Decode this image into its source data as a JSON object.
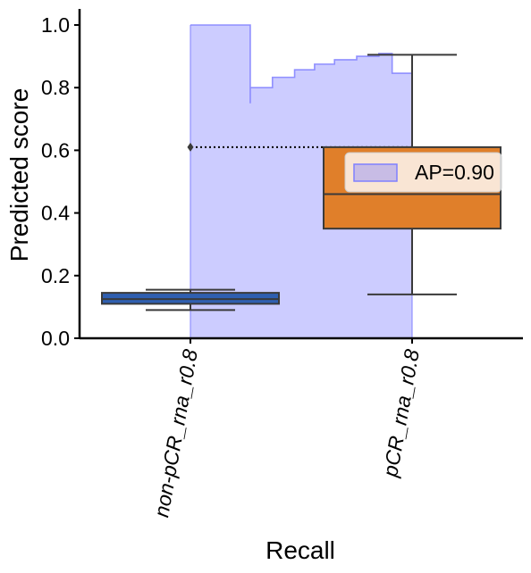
{
  "chart_data": {
    "type": "box",
    "xlabel": "Recall",
    "ylabel": "Predicted score",
    "ylim": [
      0,
      1.05
    ],
    "yticks": [
      "0.0",
      "0.2",
      "0.4",
      "0.6",
      "0.8",
      "1.0"
    ],
    "categories": [
      "non-pCR_rna_r0.8",
      "pCR_rna_r0.8"
    ],
    "boxes": [
      {
        "category": "non-pCR_rna_r0.8",
        "whisker_low": 0.09,
        "q1": 0.11,
        "median": 0.125,
        "q3": 0.145,
        "whisker_high": 0.155,
        "outliers": [
          0.61
        ],
        "color": "#2f5fb0"
      },
      {
        "category": "pCR_rna_r0.8",
        "whisker_low": 0.14,
        "q1": 0.35,
        "median": 0.46,
        "q3": 0.61,
        "whisker_high": 0.905,
        "outliers": [],
        "color": "#e07f2a"
      }
    ],
    "pr_curve": {
      "label": "AP=0.90",
      "color": "#8080ff",
      "recall": [
        0.0,
        0.27,
        0.27,
        0.37,
        0.37,
        0.47,
        0.47,
        0.56,
        0.56,
        0.65,
        0.65,
        0.75,
        0.75,
        0.85,
        0.85,
        0.91,
        0.91,
        1.0
      ],
      "precision": [
        1.0,
        1.0,
        0.8,
        0.8,
        0.833,
        0.833,
        0.857,
        0.857,
        0.875,
        0.875,
        0.889,
        0.889,
        0.9,
        0.9,
        0.909,
        0.909,
        0.846,
        0.846
      ],
      "dip": {
        "recall": 0.27,
        "precision": 0.75
      }
    },
    "legend": {
      "placement": "center-right",
      "entries": [
        "AP=0.90"
      ]
    },
    "grid": false
  }
}
